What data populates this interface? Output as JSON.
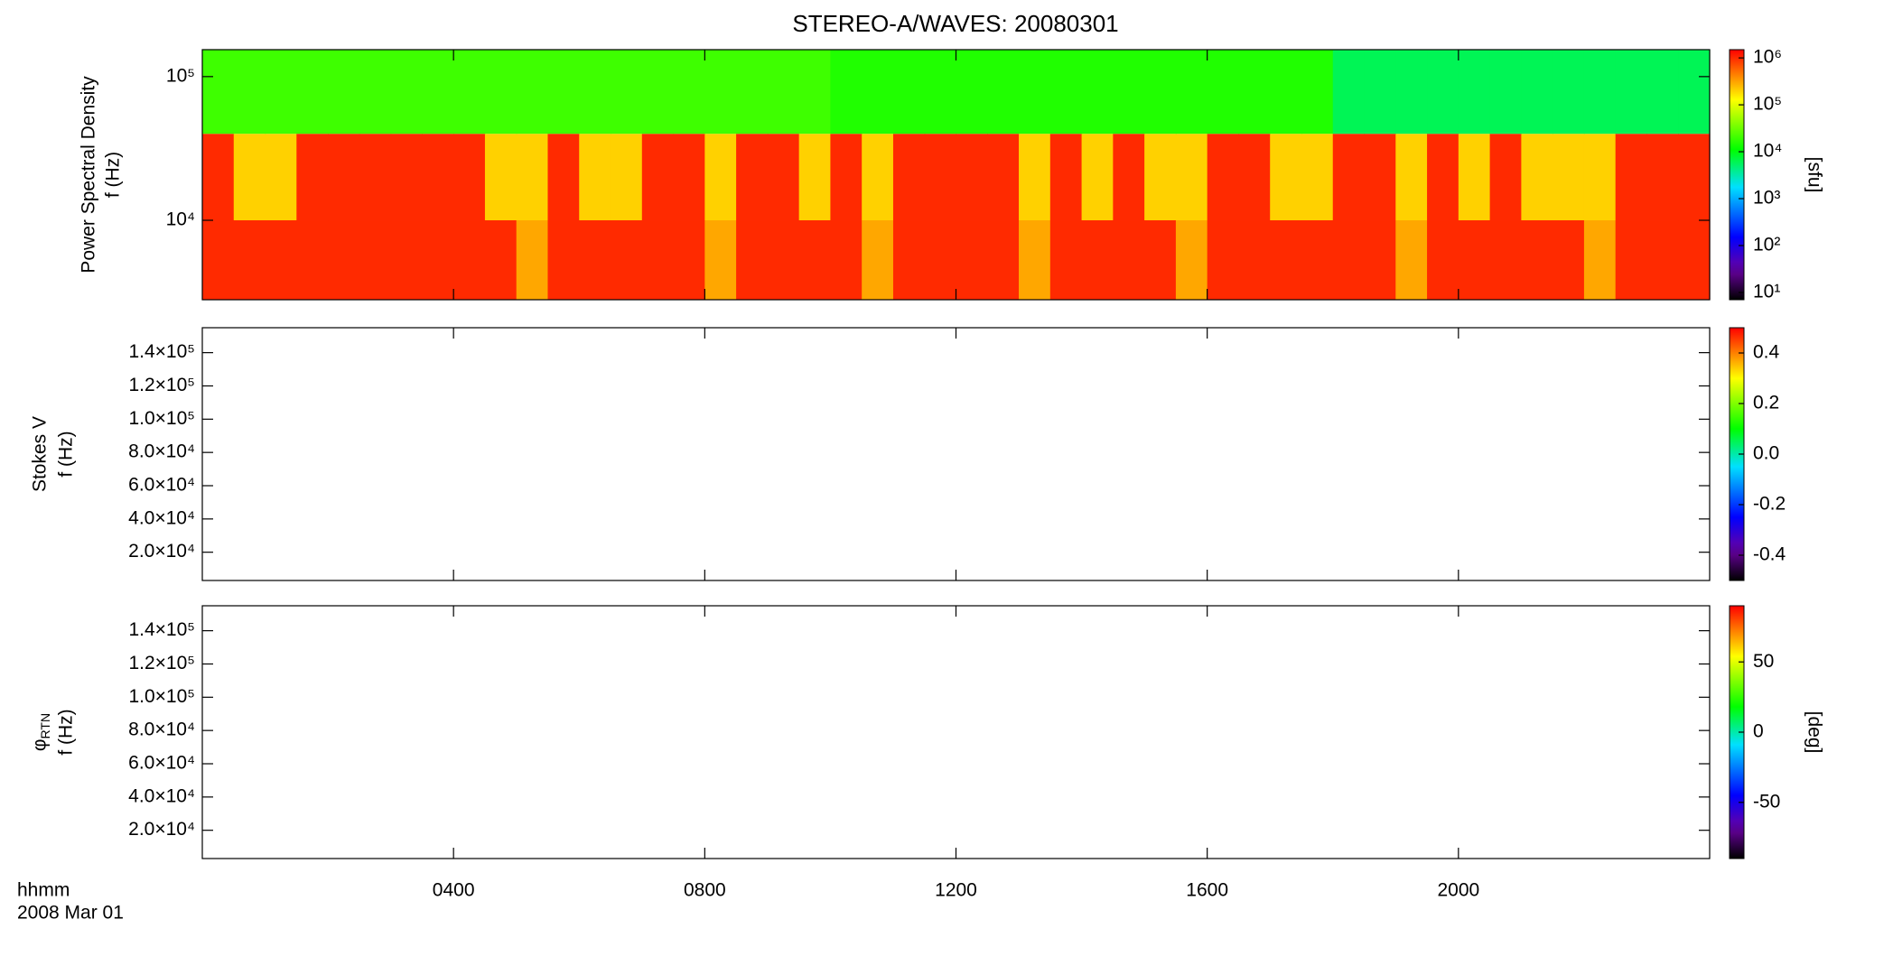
{
  "title": "STEREO-A/WAVES: 20080301",
  "xlabel": "hhmm",
  "date_label": "2008 Mar 01",
  "xlim": [
    0,
    24
  ],
  "xticks": [
    {
      "value": 4,
      "label": "0400"
    },
    {
      "value": 8,
      "label": "0800"
    },
    {
      "value": 12,
      "label": "1200"
    },
    {
      "value": 16,
      "label": "1600"
    },
    {
      "value": 20,
      "label": "2000"
    }
  ],
  "chart_data": [
    {
      "type": "heatmap",
      "ylabel": [
        "Power Spectral Density",
        "f (Hz)"
      ],
      "yscale": "log",
      "ylim": [
        2800,
        154000
      ],
      "yticks": [
        {
          "value": 10000,
          "label": "10⁴"
        },
        {
          "value": 100000,
          "label": "10⁵"
        }
      ],
      "x": [
        0.25,
        0.75,
        1.25,
        1.75,
        2.25,
        2.75,
        3.25,
        3.75,
        4.25,
        4.75,
        5.25,
        5.75,
        6.25,
        6.75,
        7.25,
        7.75,
        8.25,
        8.75,
        9.25,
        9.75,
        10.25,
        10.75,
        11.25,
        11.75,
        12.25,
        12.75,
        13.25,
        13.75,
        14.25,
        14.75,
        15.25,
        15.75,
        16.25,
        16.75,
        17.25,
        17.75,
        18.25,
        18.75,
        19.25,
        19.75,
        20.25,
        20.75,
        21.25,
        21.75,
        22.25,
        22.75,
        23.25,
        23.75
      ],
      "y_bins": [
        2800,
        10000,
        40000,
        154000
      ],
      "values": [
        [
          1000000,
          1000000,
          1000000,
          1000000,
          1000000,
          1000000,
          1000000,
          1000000,
          1000000,
          1000000,
          300000,
          1000000,
          1000000,
          1000000,
          1000000,
          1000000,
          300000,
          1000000,
          1000000,
          1000000,
          1000000,
          300000,
          1000000,
          1000000,
          1000000,
          1000000,
          300000,
          1000000,
          1000000,
          1000000,
          1000000,
          300000,
          1000000,
          1000000,
          1000000,
          1000000,
          1000000,
          1000000,
          300000,
          1000000,
          1000000,
          1000000,
          1000000,
          1000000,
          300000,
          1000000,
          1000000,
          1000000
        ],
        [
          1000000,
          200000,
          200000,
          1000000,
          1000000,
          1000000,
          1000000,
          1000000,
          1000000,
          200000,
          200000,
          1000000,
          200000,
          200000,
          1000000,
          1000000,
          200000,
          1000000,
          1000000,
          200000,
          1000000,
          200000,
          1000000,
          1000000,
          1000000,
          1000000,
          200000,
          1000000,
          200000,
          1000000,
          200000,
          200000,
          1000000,
          1000000,
          200000,
          200000,
          1000000,
          1000000,
          200000,
          1000000,
          200000,
          1000000,
          200000,
          200000,
          200000,
          1000000,
          1000000,
          1000000
        ],
        [
          20000,
          20000,
          20000,
          20000,
          20000,
          20000,
          20000,
          20000,
          20000,
          20000,
          20000,
          20000,
          20000,
          20000,
          20000,
          20000,
          20000,
          20000,
          20000,
          20000,
          15000,
          15000,
          15000,
          15000,
          15000,
          15000,
          15000,
          15000,
          15000,
          15000,
          15000,
          15000,
          15000,
          15000,
          15000,
          15000,
          6000,
          6000,
          6000,
          6000,
          6000,
          6000,
          6000,
          6000,
          6000,
          6000,
          6000,
          6000
        ]
      ],
      "colorbar": {
        "scale": "log",
        "lim": [
          7,
          1500000
        ],
        "label": "[sfu]",
        "ticks": [
          {
            "value": 10,
            "label": "10¹"
          },
          {
            "value": 100,
            "label": "10²"
          },
          {
            "value": 1000,
            "label": "10³"
          },
          {
            "value": 10000,
            "label": "10⁴"
          },
          {
            "value": 100000,
            "label": "10⁵"
          },
          {
            "value": 1000000,
            "label": "10⁶"
          }
        ]
      }
    },
    {
      "type": "heatmap",
      "ylabel": [
        "Stokes V",
        "f (Hz)"
      ],
      "ylim": [
        3000,
        155000
      ],
      "yticks": [
        {
          "value": 20000,
          "label": "2.0×10⁴"
        },
        {
          "value": 40000,
          "label": "4.0×10⁴"
        },
        {
          "value": 60000,
          "label": "6.0×10⁴"
        },
        {
          "value": 80000,
          "label": "8.0×10⁴"
        },
        {
          "value": 100000,
          "label": "1.0×10⁵"
        },
        {
          "value": 120000,
          "label": "1.2×10⁵"
        },
        {
          "value": 140000,
          "label": "1.4×10⁵"
        }
      ],
      "colorbar": {
        "scale": "linear",
        "lim": [
          -0.5,
          0.5
        ],
        "ticks": [
          -0.4,
          -0.2,
          {
            "value": 0,
            "label": "0.0"
          },
          0.2,
          0.4
        ]
      }
    },
    {
      "type": "heatmap",
      "ylabel": [
        "φ",
        "f (Hz)"
      ],
      "ylabel_sub": "RTN",
      "ylim": [
        3000,
        155000
      ],
      "yticks": [
        {
          "value": 20000,
          "label": "2.0×10⁴"
        },
        {
          "value": 40000,
          "label": "4.0×10⁴"
        },
        {
          "value": 60000,
          "label": "6.0×10⁴"
        },
        {
          "value": 80000,
          "label": "8.0×10⁴"
        },
        {
          "value": 100000,
          "label": "1.0×10⁵"
        },
        {
          "value": 120000,
          "label": "1.2×10⁵"
        },
        {
          "value": 140000,
          "label": "1.4×10⁵"
        }
      ],
      "colorbar": {
        "scale": "linear",
        "lim": [
          -90,
          90
        ],
        "label": "[deg]",
        "ticks": [
          -50,
          0,
          50
        ]
      }
    }
  ]
}
